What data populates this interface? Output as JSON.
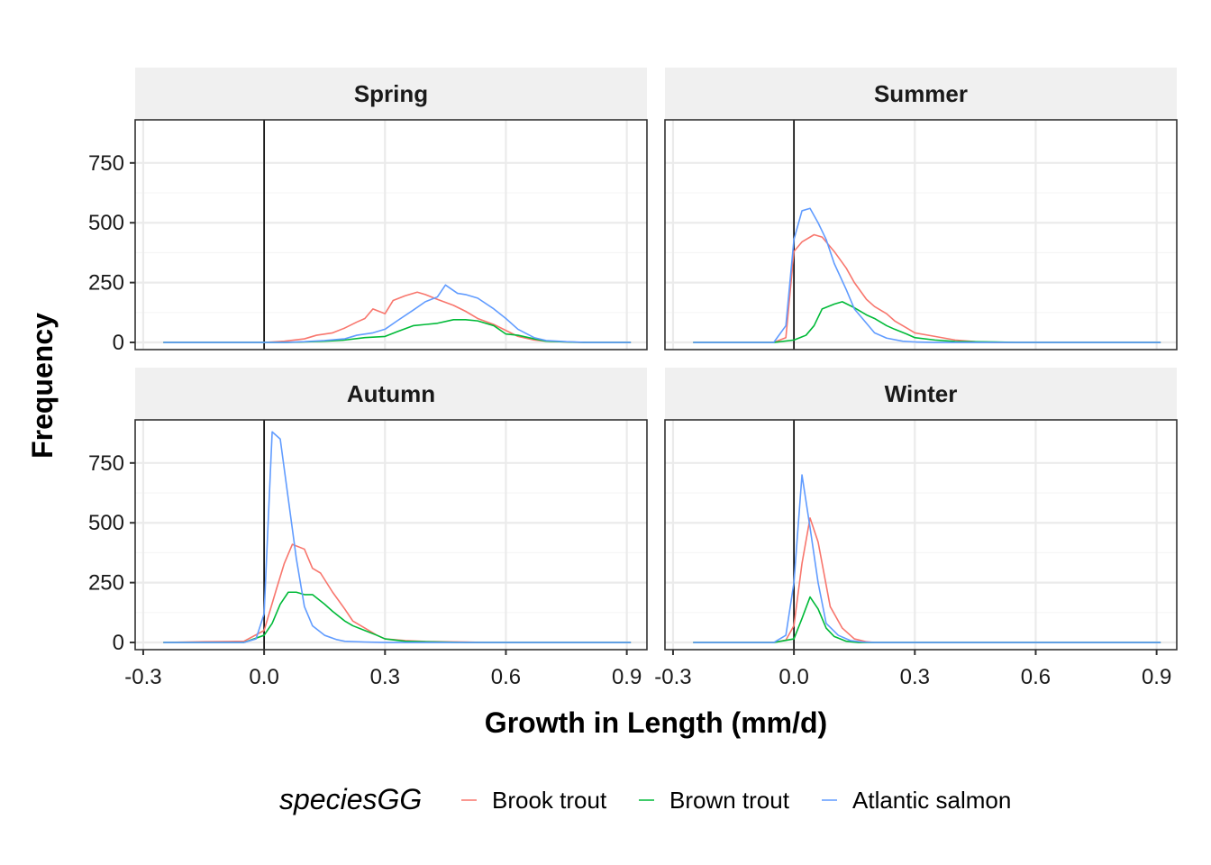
{
  "chart_data": {
    "type": "line",
    "xlabel": "Growth in Length (mm/d)",
    "ylabel": "Frequency",
    "xlim": [
      -0.32,
      0.95
    ],
    "ylim": [
      -30,
      930
    ],
    "x_ticks": [
      -0.3,
      0.0,
      0.3,
      0.6,
      0.9
    ],
    "x_tick_labels": [
      "-0.3",
      "0.0",
      "0.3",
      "0.6",
      "0.9"
    ],
    "y_ticks": [
      0,
      250,
      500,
      750
    ],
    "y_tick_labels": [
      "0",
      "250",
      "500",
      "750"
    ],
    "vline_x": 0,
    "grid": true,
    "legend_position": "bottom",
    "legend_title": "speciesGG",
    "colors": {
      "Brook trout": "#F8766D",
      "Brown trout": "#00BA38",
      "Atlantic salmon": "#619CFF"
    },
    "facets": [
      {
        "title": "Spring",
        "series": [
          {
            "name": "Brook trout",
            "points": [
              [
                -0.25,
                0
              ],
              [
                0.0,
                0
              ],
              [
                0.05,
                5
              ],
              [
                0.1,
                15
              ],
              [
                0.13,
                30
              ],
              [
                0.17,
                40
              ],
              [
                0.2,
                60
              ],
              [
                0.23,
                85
              ],
              [
                0.25,
                100
              ],
              [
                0.27,
                140
              ],
              [
                0.3,
                120
              ],
              [
                0.32,
                175
              ],
              [
                0.35,
                195
              ],
              [
                0.38,
                210
              ],
              [
                0.4,
                200
              ],
              [
                0.43,
                180
              ],
              [
                0.47,
                155
              ],
              [
                0.5,
                130
              ],
              [
                0.53,
                100
              ],
              [
                0.57,
                75
              ],
              [
                0.6,
                50
              ],
              [
                0.63,
                25
              ],
              [
                0.67,
                10
              ],
              [
                0.7,
                5
              ],
              [
                0.75,
                2
              ],
              [
                0.8,
                0
              ],
              [
                0.91,
                0
              ]
            ]
          },
          {
            "name": "Brown trout",
            "points": [
              [
                -0.25,
                0
              ],
              [
                0.05,
                0
              ],
              [
                0.1,
                2
              ],
              [
                0.15,
                5
              ],
              [
                0.2,
                10
              ],
              [
                0.25,
                20
              ],
              [
                0.3,
                25
              ],
              [
                0.33,
                45
              ],
              [
                0.37,
                70
              ],
              [
                0.4,
                75
              ],
              [
                0.43,
                80
              ],
              [
                0.47,
                95
              ],
              [
                0.5,
                95
              ],
              [
                0.53,
                90
              ],
              [
                0.57,
                70
              ],
              [
                0.6,
                35
              ],
              [
                0.63,
                30
              ],
              [
                0.67,
                15
              ],
              [
                0.7,
                5
              ],
              [
                0.75,
                2
              ],
              [
                0.8,
                0
              ],
              [
                0.91,
                0
              ]
            ]
          },
          {
            "name": "Atlantic salmon",
            "points": [
              [
                -0.25,
                0
              ],
              [
                0.05,
                0
              ],
              [
                0.1,
                3
              ],
              [
                0.15,
                8
              ],
              [
                0.2,
                15
              ],
              [
                0.23,
                30
              ],
              [
                0.27,
                40
              ],
              [
                0.3,
                55
              ],
              [
                0.33,
                90
              ],
              [
                0.37,
                135
              ],
              [
                0.4,
                170
              ],
              [
                0.43,
                190
              ],
              [
                0.45,
                240
              ],
              [
                0.48,
                205
              ],
              [
                0.5,
                200
              ],
              [
                0.53,
                185
              ],
              [
                0.57,
                140
              ],
              [
                0.6,
                100
              ],
              [
                0.63,
                55
              ],
              [
                0.67,
                20
              ],
              [
                0.7,
                8
              ],
              [
                0.75,
                3
              ],
              [
                0.8,
                0
              ],
              [
                0.91,
                0
              ]
            ]
          }
        ]
      },
      {
        "title": "Summer",
        "series": [
          {
            "name": "Brook trout",
            "points": [
              [
                -0.25,
                0
              ],
              [
                -0.05,
                0
              ],
              [
                -0.02,
                20
              ],
              [
                0.0,
                380
              ],
              [
                0.02,
                420
              ],
              [
                0.05,
                450
              ],
              [
                0.07,
                440
              ],
              [
                0.1,
                380
              ],
              [
                0.13,
                310
              ],
              [
                0.15,
                250
              ],
              [
                0.18,
                180
              ],
              [
                0.2,
                150
              ],
              [
                0.23,
                120
              ],
              [
                0.25,
                90
              ],
              [
                0.28,
                60
              ],
              [
                0.3,
                40
              ],
              [
                0.35,
                25
              ],
              [
                0.4,
                10
              ],
              [
                0.45,
                3
              ],
              [
                0.5,
                0
              ],
              [
                0.91,
                0
              ]
            ]
          },
          {
            "name": "Brown trout",
            "points": [
              [
                -0.25,
                0
              ],
              [
                -0.05,
                0
              ],
              [
                0.0,
                10
              ],
              [
                0.03,
                30
              ],
              [
                0.05,
                70
              ],
              [
                0.07,
                140
              ],
              [
                0.1,
                160
              ],
              [
                0.12,
                170
              ],
              [
                0.15,
                145
              ],
              [
                0.18,
                115
              ],
              [
                0.2,
                100
              ],
              [
                0.23,
                70
              ],
              [
                0.25,
                55
              ],
              [
                0.28,
                35
              ],
              [
                0.3,
                20
              ],
              [
                0.35,
                10
              ],
              [
                0.4,
                4
              ],
              [
                0.5,
                2
              ],
              [
                0.55,
                0
              ],
              [
                0.91,
                0
              ]
            ]
          },
          {
            "name": "Atlantic salmon",
            "points": [
              [
                -0.25,
                0
              ],
              [
                -0.05,
                0
              ],
              [
                -0.02,
                70
              ],
              [
                0.0,
                430
              ],
              [
                0.02,
                550
              ],
              [
                0.04,
                560
              ],
              [
                0.06,
                500
              ],
              [
                0.08,
                430
              ],
              [
                0.1,
                330
              ],
              [
                0.13,
                220
              ],
              [
                0.15,
                140
              ],
              [
                0.18,
                80
              ],
              [
                0.2,
                40
              ],
              [
                0.23,
                18
              ],
              [
                0.27,
                5
              ],
              [
                0.3,
                2
              ],
              [
                0.35,
                0
              ],
              [
                0.91,
                0
              ]
            ]
          }
        ]
      },
      {
        "title": "Autumn",
        "series": [
          {
            "name": "Brook trout",
            "points": [
              [
                -0.25,
                0
              ],
              [
                -0.15,
                3
              ],
              [
                -0.05,
                5
              ],
              [
                0.0,
                50
              ],
              [
                0.03,
                220
              ],
              [
                0.05,
                330
              ],
              [
                0.07,
                410
              ],
              [
                0.1,
                390
              ],
              [
                0.12,
                310
              ],
              [
                0.14,
                290
              ],
              [
                0.17,
                210
              ],
              [
                0.2,
                140
              ],
              [
                0.22,
                90
              ],
              [
                0.25,
                60
              ],
              [
                0.28,
                30
              ],
              [
                0.3,
                15
              ],
              [
                0.35,
                8
              ],
              [
                0.4,
                4
              ],
              [
                0.5,
                2
              ],
              [
                0.55,
                0
              ],
              [
                0.91,
                0
              ]
            ]
          },
          {
            "name": "Brown trout",
            "points": [
              [
                -0.25,
                0
              ],
              [
                -0.05,
                0
              ],
              [
                0.0,
                30
              ],
              [
                0.02,
                80
              ],
              [
                0.04,
                160
              ],
              [
                0.06,
                210
              ],
              [
                0.08,
                210
              ],
              [
                0.1,
                200
              ],
              [
                0.12,
                200
              ],
              [
                0.15,
                160
              ],
              [
                0.17,
                130
              ],
              [
                0.2,
                90
              ],
              [
                0.22,
                70
              ],
              [
                0.25,
                50
              ],
              [
                0.28,
                30
              ],
              [
                0.3,
                15
              ],
              [
                0.35,
                5
              ],
              [
                0.4,
                3
              ],
              [
                0.5,
                0
              ],
              [
                0.91,
                0
              ]
            ]
          },
          {
            "name": "Atlantic salmon",
            "points": [
              [
                -0.25,
                0
              ],
              [
                -0.05,
                0
              ],
              [
                -0.02,
                15
              ],
              [
                0.0,
                120
              ],
              [
                0.02,
                880
              ],
              [
                0.04,
                850
              ],
              [
                0.06,
                600
              ],
              [
                0.08,
                350
              ],
              [
                0.1,
                150
              ],
              [
                0.12,
                70
              ],
              [
                0.15,
                30
              ],
              [
                0.18,
                12
              ],
              [
                0.2,
                5
              ],
              [
                0.25,
                2
              ],
              [
                0.3,
                0
              ],
              [
                0.91,
                0
              ]
            ]
          }
        ]
      },
      {
        "title": "Winter",
        "series": [
          {
            "name": "Brook trout",
            "points": [
              [
                -0.25,
                0
              ],
              [
                -0.05,
                0
              ],
              [
                -0.02,
                10
              ],
              [
                0.0,
                70
              ],
              [
                0.02,
                330
              ],
              [
                0.04,
                520
              ],
              [
                0.06,
                420
              ],
              [
                0.09,
                150
              ],
              [
                0.12,
                60
              ],
              [
                0.15,
                15
              ],
              [
                0.18,
                3
              ],
              [
                0.2,
                0
              ],
              [
                0.91,
                0
              ]
            ]
          },
          {
            "name": "Brown trout",
            "points": [
              [
                -0.25,
                0
              ],
              [
                -0.05,
                0
              ],
              [
                0.0,
                15
              ],
              [
                0.02,
                100
              ],
              [
                0.04,
                190
              ],
              [
                0.06,
                140
              ],
              [
                0.08,
                60
              ],
              [
                0.1,
                25
              ],
              [
                0.13,
                5
              ],
              [
                0.16,
                0
              ],
              [
                0.91,
                0
              ]
            ]
          },
          {
            "name": "Atlantic salmon",
            "points": [
              [
                -0.25,
                0
              ],
              [
                -0.05,
                0
              ],
              [
                -0.02,
                30
              ],
              [
                0.0,
                250
              ],
              [
                0.02,
                700
              ],
              [
                0.04,
                480
              ],
              [
                0.06,
                250
              ],
              [
                0.08,
                80
              ],
              [
                0.11,
                30
              ],
              [
                0.14,
                8
              ],
              [
                0.17,
                2
              ],
              [
                0.2,
                0
              ],
              [
                0.91,
                0
              ]
            ]
          }
        ]
      }
    ]
  }
}
